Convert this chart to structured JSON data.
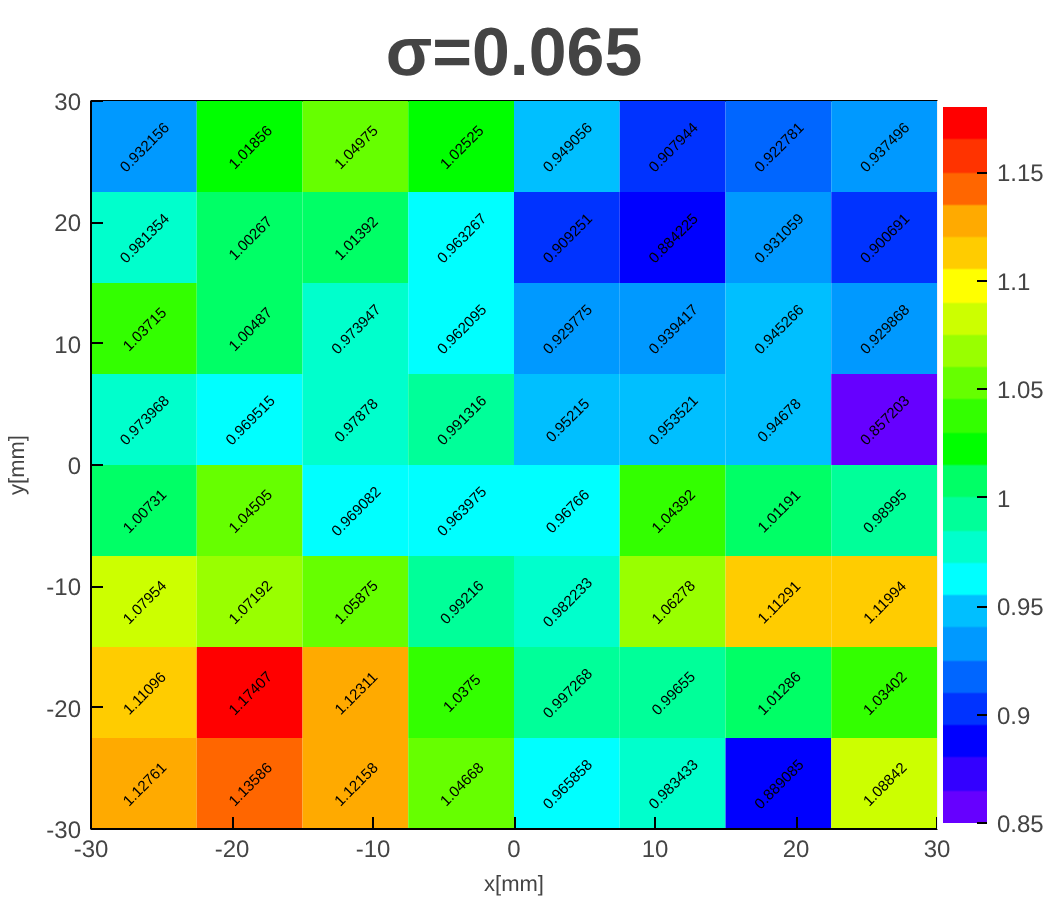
{
  "chart_data": {
    "type": "heatmap",
    "title": "σ=0.065",
    "xlabel": "x[mm]",
    "ylabel": "y[mm]",
    "x": [
      -26.25,
      -18.75,
      -11.25,
      -3.75,
      3.75,
      11.25,
      18.75,
      26.25
    ],
    "xlim": [
      -30,
      30
    ],
    "xticks": [
      -30,
      -20,
      -10,
      0,
      10,
      20,
      30
    ],
    "ylim": [
      -30,
      30
    ],
    "yticks": [
      -30,
      -20,
      -10,
      0,
      10,
      20,
      30
    ],
    "clim": [
      0.85,
      1.18
    ],
    "cticks": [
      0.85,
      0.9,
      0.95,
      1,
      1.05,
      1.1,
      1.15
    ],
    "data_labels": true,
    "cells": [
      [
        0.932156,
        1.01856,
        1.04975,
        1.02525,
        0.949056,
        0.907944,
        0.922781,
        0.937496
      ],
      [
        0.981354,
        1.00267,
        1.01392,
        0.963267,
        0.909251,
        0.884225,
        0.931059,
        0.900691
      ],
      [
        1.03715,
        1.00487,
        0.973947,
        0.962095,
        0.929775,
        0.939417,
        0.945266,
        0.929868
      ],
      [
        0.973968,
        0.969515,
        0.97878,
        0.991316,
        0.95215,
        0.953521,
        0.94678,
        0.857203
      ],
      [
        1.00731,
        1.04505,
        0.969082,
        0.963975,
        0.96766,
        1.04392,
        1.01191,
        0.98995
      ],
      [
        1.07954,
        1.07192,
        1.05875,
        0.99216,
        0.982233,
        1.06278,
        1.11291,
        1.11994
      ],
      [
        1.11096,
        1.17407,
        1.12311,
        1.0375,
        0.997268,
        0.99655,
        1.01286,
        1.03402
      ],
      [
        1.12761,
        1.13586,
        1.12158,
        1.04668,
        0.965858,
        0.983433,
        0.889085,
        1.08842
      ]
    ]
  }
}
